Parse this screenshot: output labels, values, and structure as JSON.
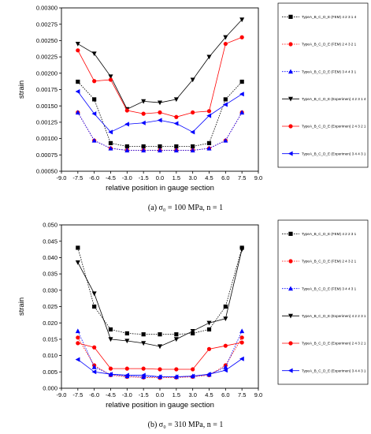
{
  "chart_data": [
    {
      "type": "line",
      "caption": "(a)  σ₀ = 100 MPa, n = 1",
      "xlabel": "relative position in gauge section",
      "ylabel": "strain",
      "xlim": [
        -9.0,
        9.0
      ],
      "ylim": [
        0.0005,
        0.003
      ],
      "xticks": [
        "-9.0",
        "-7.5",
        "-6.0",
        "-4.5",
        "-3.0",
        "-1.5",
        "0.0",
        "1.5",
        "3.0",
        "4.5",
        "6.0",
        "7.5",
        "9.0"
      ],
      "yticks": [
        "0.00050",
        "0.00075",
        "0.00100",
        "0.00125",
        "0.00150",
        "0.00175",
        "0.00200",
        "0.00225",
        "0.00250",
        "0.00275",
        "0.00300"
      ],
      "x": [
        -7.5,
        -6.0,
        -4.5,
        -3.0,
        -1.5,
        0.0,
        1.5,
        3.0,
        4.5,
        6.0,
        7.5
      ],
      "series": [
        {
          "name": "TypeA_B_C_D_E (FEM) 4 2 3 1 4",
          "color": "#000000",
          "marker": "square",
          "dash": true,
          "values": [
            0.00187,
            0.0016,
            0.00093,
            0.00088,
            0.00088,
            0.00088,
            0.00088,
            0.00088,
            0.00093,
            0.0016,
            0.00187
          ]
        },
        {
          "name": "TypeA_B_C_D_E (FEM) 2 4 3 2 1",
          "color": "#ff0000",
          "marker": "circle",
          "dash": true,
          "values": [
            0.0014,
            0.00097,
            0.00085,
            0.00082,
            0.00082,
            0.00082,
            0.00082,
            0.00082,
            0.00085,
            0.00097,
            0.0014
          ]
        },
        {
          "name": "TypeA_B_C_D_E (FEM) 3 4 4 3 1",
          "color": "#0000ff",
          "marker": "triangle-up",
          "dash": true,
          "values": [
            0.0014,
            0.00097,
            0.00085,
            0.00082,
            0.00082,
            0.00082,
            0.00082,
            0.00082,
            0.00085,
            0.00097,
            0.0014
          ]
        },
        {
          "name": "TypeA_B_C_D_E (Experimen) 4 2 3 1 4",
          "color": "#000000",
          "marker": "triangle-down",
          "dash": false,
          "values": [
            0.00245,
            0.0023,
            0.00195,
            0.00145,
            0.00157,
            0.00155,
            0.0016,
            0.0019,
            0.00225,
            0.00255,
            0.00282
          ]
        },
        {
          "name": "TypeA_B_C_D_E (Experimen) 2 4 3 2 1",
          "color": "#ff0000",
          "marker": "circle",
          "dash": false,
          "values": [
            0.00235,
            0.00188,
            0.0019,
            0.00143,
            0.00138,
            0.0014,
            0.00133,
            0.0014,
            0.00142,
            0.00245,
            0.00255
          ]
        },
        {
          "name": "TypeA_B_C_D_E (Experimen) 3 4 4 3 1",
          "color": "#0000ff",
          "marker": "triangle-left",
          "dash": false,
          "values": [
            0.00172,
            0.00138,
            0.0011,
            0.00122,
            0.00124,
            0.00128,
            0.00123,
            0.0011,
            0.00135,
            0.00152,
            0.00168
          ]
        }
      ],
      "legend_position": "right"
    },
    {
      "type": "line",
      "caption": "(b)  σ₀ = 310 MPa, n = 1",
      "xlabel": "relative position in gauge section",
      "ylabel": "strain",
      "xlim": [
        -9.0,
        9.0
      ],
      "ylim": [
        0.0,
        0.05
      ],
      "xticks": [
        "-9.0",
        "-7.5",
        "-6.0",
        "-4.5",
        "-3.0",
        "-1.5",
        "0.0",
        "1.5",
        "3.0",
        "4.5",
        "6.0",
        "7.5",
        "9.0"
      ],
      "yticks": [
        "0.000",
        "0.005",
        "0.010",
        "0.015",
        "0.020",
        "0.025",
        "0.030",
        "0.035",
        "0.040",
        "0.045",
        "0.050"
      ],
      "x": [
        -7.5,
        -6.0,
        -4.5,
        -3.0,
        -1.5,
        0.0,
        1.5,
        3.0,
        4.5,
        6.0,
        7.5
      ],
      "series": [
        {
          "name": "TypeA_B_C_D_E (FEM) 4 2 2 3 1",
          "color": "#000000",
          "marker": "square",
          "dash": true,
          "values": [
            0.043,
            0.025,
            0.018,
            0.0168,
            0.0165,
            0.0165,
            0.0165,
            0.0168,
            0.018,
            0.025,
            0.043
          ]
        },
        {
          "name": "TypeA_B_C_D_E (FEM) 2 4 3 2 1",
          "color": "#ff0000",
          "marker": "circle",
          "dash": true,
          "values": [
            0.0155,
            0.007,
            0.004,
            0.0035,
            0.0033,
            0.0032,
            0.0033,
            0.0035,
            0.004,
            0.007,
            0.0155
          ]
        },
        {
          "name": "TypeA_B_C_D_E (FEM) 3 4 4 3 1",
          "color": "#0000ff",
          "marker": "triangle-up",
          "dash": true,
          "values": [
            0.0175,
            0.0065,
            0.0042,
            0.0037,
            0.0035,
            0.0035,
            0.0035,
            0.0037,
            0.0042,
            0.0065,
            0.0175
          ]
        },
        {
          "name": "TypeA_B_C_D_E (Experimen) 4 2 2 3 1",
          "color": "#000000",
          "marker": "triangle-down",
          "dash": false,
          "values": [
            0.0385,
            0.029,
            0.015,
            0.0145,
            0.0138,
            0.0128,
            0.015,
            0.0175,
            0.02,
            0.0213,
            0.0425
          ]
        },
        {
          "name": "TypeA_B_C_D_E (Experimen) 2 4 3 2 1",
          "color": "#ff0000",
          "marker": "circle",
          "dash": false,
          "values": [
            0.0138,
            0.0125,
            0.006,
            0.006,
            0.006,
            0.0058,
            0.0058,
            0.0058,
            0.012,
            0.013,
            0.014
          ]
        },
        {
          "name": "TypeA_B_C_D_E (Experimen) 3 4 4 3 1",
          "color": "#0000ff",
          "marker": "triangle-left",
          "dash": false,
          "values": [
            0.0088,
            0.005,
            0.0043,
            0.004,
            0.004,
            0.0035,
            0.0035,
            0.0037,
            0.0043,
            0.0055,
            0.009
          ]
        }
      ],
      "legend_position": "right"
    }
  ]
}
